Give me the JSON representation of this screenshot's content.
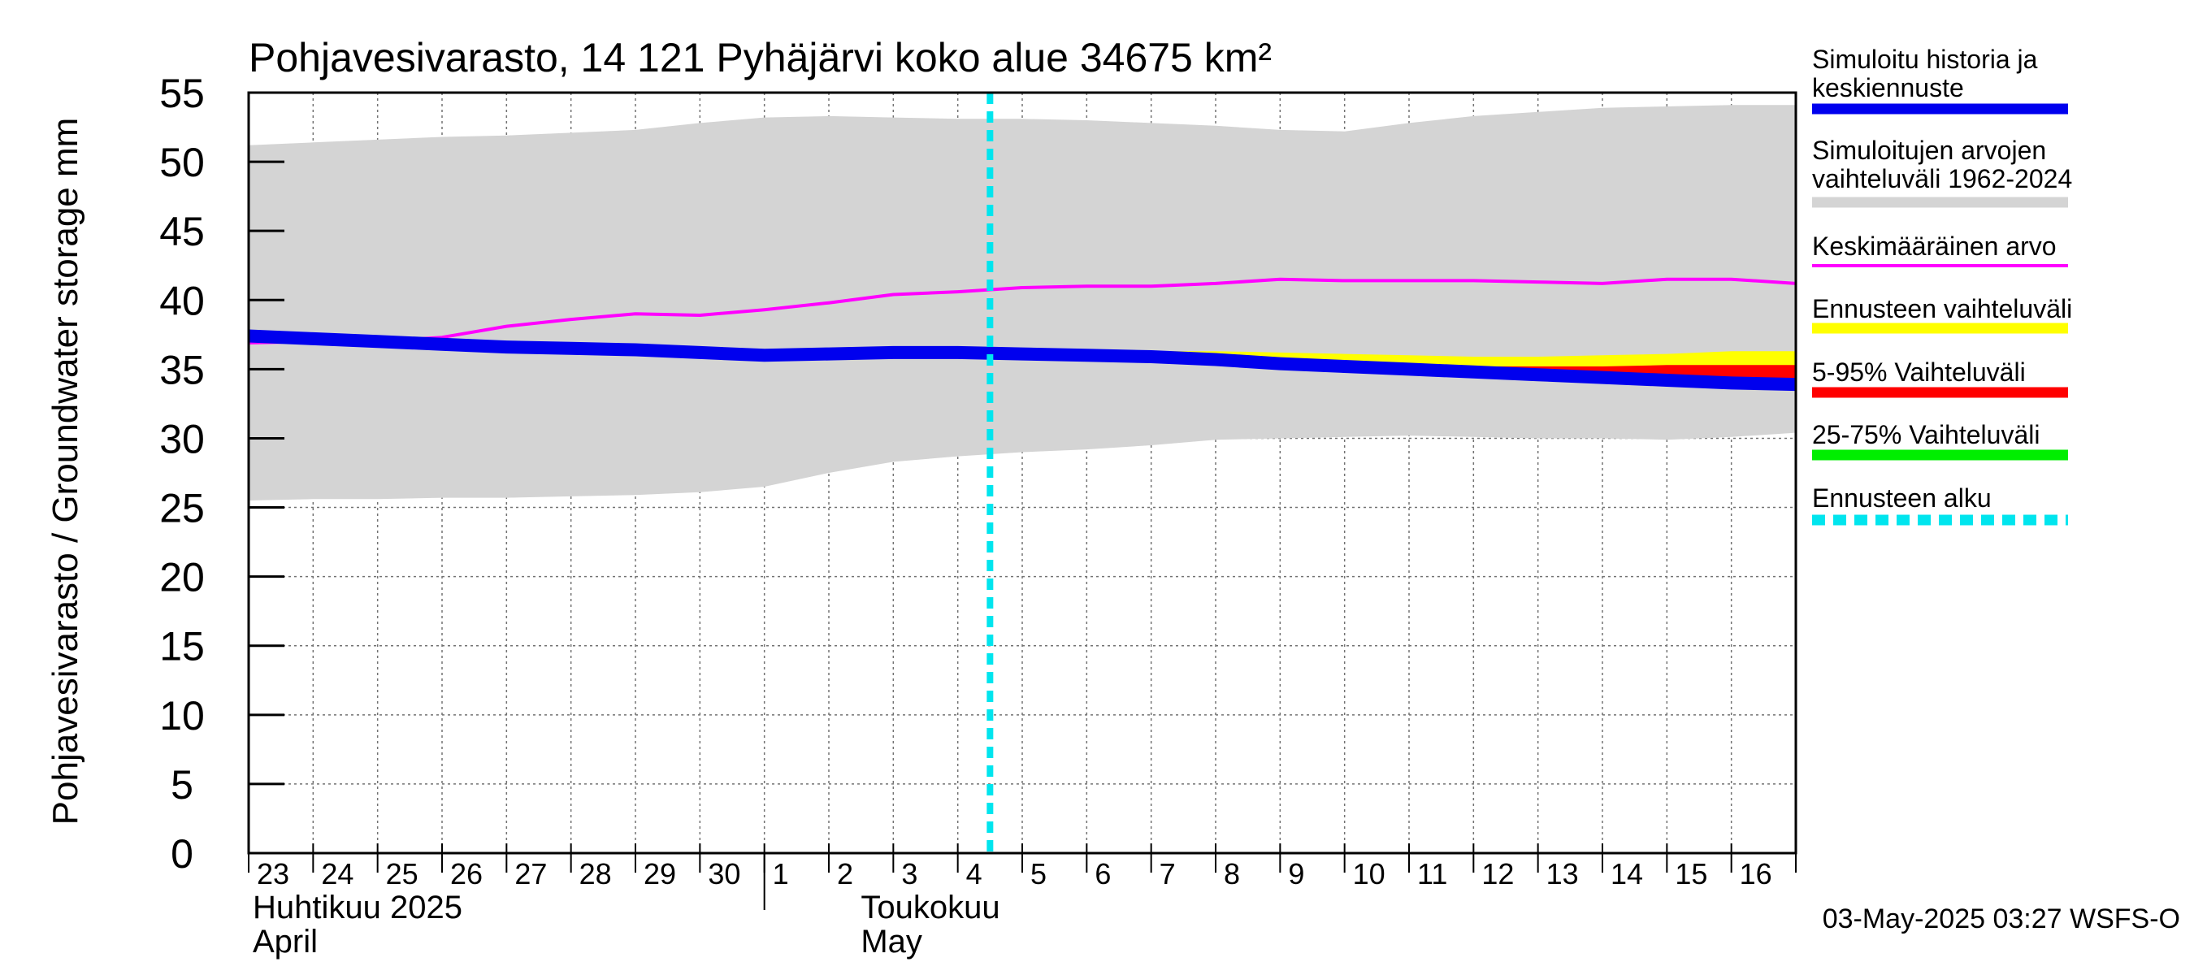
{
  "chart_data": {
    "type": "area",
    "title": "Pohjavesivarasto, 14 121 Pyhäjärvi koko alue 34675 km²",
    "ylabel": "Pohjavesivarasto / Groundwater storage   mm",
    "ylim": [
      0,
      55
    ],
    "yticks": [
      0,
      5,
      10,
      15,
      20,
      25,
      30,
      35,
      40,
      45,
      50,
      55
    ],
    "x_start": "2025-04-22",
    "x_end": "2025-05-16",
    "xtick_labels": [
      "23",
      "24",
      "25",
      "26",
      "27",
      "28",
      "29",
      "30",
      "1",
      "2",
      "3",
      "4",
      "5",
      "6",
      "7",
      "8",
      "9",
      "10",
      "11",
      "12",
      "13",
      "14",
      "15",
      "16"
    ],
    "month_labels": [
      {
        "line1": "Huhtikuu  2025",
        "line2": "April"
      },
      {
        "line1": "Toukokuu",
        "line2": "May"
      }
    ],
    "grid": true,
    "legend_position": "right",
    "forecast_start": 11.5,
    "x": [
      0,
      1,
      2,
      3,
      4,
      5,
      6,
      7,
      8,
      9,
      10,
      11,
      12,
      13,
      14,
      15,
      16,
      17,
      18,
      19,
      20,
      21,
      22,
      23,
      24
    ],
    "series": [
      {
        "name": "Simuloitujen arvojen vaihteluväli 1962-2024",
        "kind": "band",
        "color": "#d4d4d4",
        "upper": [
          51.2,
          51.4,
          51.6,
          51.8,
          51.9,
          52.1,
          52.3,
          52.8,
          53.2,
          53.3,
          53.2,
          53.1,
          53.1,
          53.0,
          52.8,
          52.6,
          52.3,
          52.2,
          52.8,
          53.3,
          53.6,
          53.9,
          54.0,
          54.1,
          54.1
        ],
        "lower": [
          25.5,
          25.6,
          25.6,
          25.7,
          25.7,
          25.8,
          25.9,
          26.1,
          26.5,
          27.5,
          28.3,
          28.7,
          29.0,
          29.2,
          29.5,
          29.9,
          30.0,
          30.1,
          30.2,
          30.1,
          30.0,
          30.0,
          29.9,
          30.1,
          30.4
        ]
      },
      {
        "name": "Ennusteen vaihteluväli",
        "kind": "band",
        "color": "#ffff00",
        "upper": [
          null,
          null,
          null,
          null,
          null,
          null,
          null,
          null,
          null,
          null,
          null,
          36.3,
          36.3,
          36.3,
          36.3,
          36.3,
          36.2,
          36.1,
          36.0,
          35.9,
          35.9,
          36.0,
          36.1,
          36.3,
          36.3
        ],
        "lower": [
          null,
          null,
          null,
          null,
          null,
          null,
          null,
          null,
          null,
          null,
          null,
          36.2,
          36.1,
          36.1,
          36.0,
          35.9,
          35.8,
          35.6,
          35.4,
          35.2,
          35.0,
          34.7,
          34.4,
          34.1,
          33.8
        ]
      },
      {
        "name": "5-95% Vaihteluväli",
        "kind": "band",
        "color": "#ff0000",
        "upper": [
          null,
          null,
          null,
          null,
          null,
          null,
          null,
          null,
          null,
          null,
          null,
          36.2,
          36.1,
          36.1,
          36.0,
          35.9,
          35.8,
          35.6,
          35.4,
          35.2,
          35.2,
          35.2,
          35.3,
          35.3,
          35.3
        ],
        "lower": [
          null,
          null,
          null,
          null,
          null,
          null,
          null,
          null,
          null,
          null,
          null,
          36.2,
          36.1,
          36.1,
          36.0,
          35.9,
          35.8,
          35.6,
          35.4,
          35.2,
          35.0,
          34.7,
          34.3,
          34.0,
          33.6
        ]
      },
      {
        "name": "25-75% Vaihteluväli",
        "kind": "band",
        "color": "#00ee00",
        "upper": [
          null,
          null,
          null,
          null,
          null,
          null,
          null,
          null,
          null,
          null,
          null,
          36.2,
          36.1,
          36.1,
          36.0,
          35.9,
          35.8,
          35.6,
          35.4,
          35.2,
          35.0,
          34.7,
          34.5,
          34.3,
          34.1
        ],
        "lower": [
          null,
          null,
          null,
          null,
          null,
          null,
          null,
          null,
          null,
          null,
          null,
          36.2,
          36.1,
          36.1,
          36.0,
          35.9,
          35.8,
          35.6,
          35.4,
          35.2,
          35.0,
          34.7,
          34.4,
          34.1,
          33.8
        ]
      },
      {
        "name": "Keskimääräinen arvo",
        "kind": "line",
        "color": "#ff00ff",
        "values": [
          36.9,
          37.0,
          37.0,
          37.3,
          38.1,
          38.6,
          39.0,
          38.9,
          39.3,
          39.8,
          40.4,
          40.6,
          40.9,
          41.0,
          41.0,
          41.2,
          41.5,
          41.4,
          41.4,
          41.4,
          41.3,
          41.2,
          41.5,
          41.5,
          41.2
        ]
      },
      {
        "name": "Simuloitu historia ja keskiennuste",
        "kind": "line",
        "color": "#0000ee",
        "values": [
          37.4,
          37.2,
          37.0,
          36.8,
          36.6,
          36.5,
          36.4,
          36.2,
          36.0,
          36.1,
          36.2,
          36.2,
          36.1,
          36.0,
          35.9,
          35.7,
          35.4,
          35.2,
          35.0,
          34.8,
          34.6,
          34.4,
          34.2,
          34.0,
          33.9
        ]
      }
    ],
    "legend": [
      {
        "lines": [
          "Simuloitu historia ja",
          "keskiennuste"
        ],
        "color": "#0000ee",
        "dash": false
      },
      {
        "lines": [
          "Simuloitujen arvojen",
          "vaihteluväli 1962-2024"
        ],
        "color": "#d4d4d4",
        "dash": false
      },
      {
        "lines": [
          "Keskimääräinen arvo"
        ],
        "color": "#ff00ff",
        "dash": false,
        "thin": true
      },
      {
        "lines": [
          "Ennusteen vaihteluväli"
        ],
        "color": "#ffff00",
        "dash": false
      },
      {
        "lines": [
          "5-95% Vaihteluväli"
        ],
        "color": "#ff0000",
        "dash": false
      },
      {
        "lines": [
          "25-75% Vaihteluväli"
        ],
        "color": "#00ee00",
        "dash": false
      },
      {
        "lines": [
          "Ennusteen alku"
        ],
        "color": "#00e5ee",
        "dash": true
      }
    ],
    "footer": "03-May-2025 03:27 WSFS-O"
  }
}
